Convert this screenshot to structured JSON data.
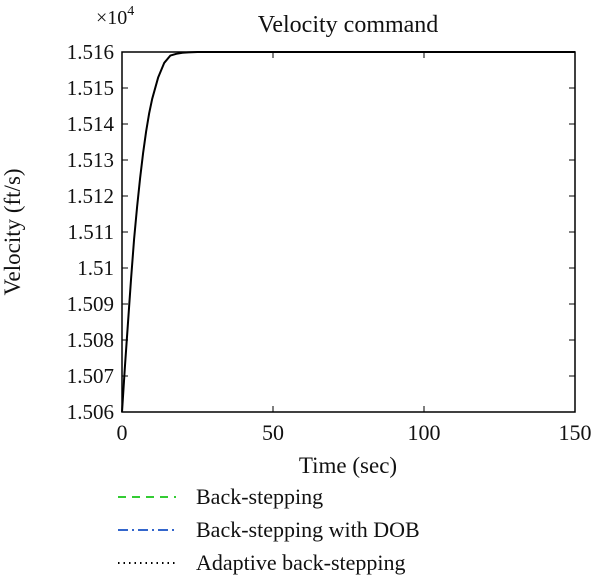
{
  "chart_data": {
    "type": "line",
    "title": "Velocity command",
    "xlabel": "Time (sec)",
    "ylabel": "Velocity (ft/s)",
    "y_multiplier_label": "×10",
    "y_multiplier_exponent": "4",
    "xlim": [
      0,
      150
    ],
    "ylim": [
      1.506,
      1.516
    ],
    "x_ticks": [
      0,
      50,
      100,
      150
    ],
    "x_tick_labels": [
      "0",
      "50",
      "100",
      "150"
    ],
    "y_ticks": [
      1.506,
      1.507,
      1.508,
      1.509,
      1.51,
      1.511,
      1.512,
      1.513,
      1.514,
      1.515,
      1.516
    ],
    "y_tick_labels": [
      "1.506",
      "1.507",
      "1.508",
      "1.509",
      "1.51",
      "1.511",
      "1.512",
      "1.513",
      "1.514",
      "1.515",
      "1.516"
    ],
    "grid": false,
    "legend_position": "below",
    "series": [
      {
        "name": "Back-stepping",
        "color": "#33cc33",
        "style": "dashed",
        "x": [],
        "y": []
      },
      {
        "name": "Back-stepping with DOB",
        "color": "#3366cc",
        "style": "dashdot",
        "x": [],
        "y": []
      },
      {
        "name": "Adaptive back-stepping",
        "color": "#000000",
        "style": "dotted",
        "x": [],
        "y": []
      },
      {
        "color": "#000000",
        "style": "solid",
        "x": [
          0,
          1,
          2,
          3,
          4,
          5,
          6,
          7,
          8,
          9,
          10,
          12,
          14,
          16,
          18,
          20,
          22,
          25,
          28,
          32,
          36,
          40,
          50,
          60,
          80,
          100,
          120,
          150
        ],
        "y": [
          1.506,
          1.5073,
          1.5085,
          1.5097,
          1.5108,
          1.5117,
          1.5125,
          1.5132,
          1.5138,
          1.5143,
          1.5147,
          1.5153,
          1.5157,
          1.5159,
          1.51595,
          1.51598,
          1.51599,
          1.516,
          1.516,
          1.516,
          1.516,
          1.516,
          1.516,
          1.516,
          1.516,
          1.516,
          1.516,
          1.516
        ]
      }
    ]
  }
}
